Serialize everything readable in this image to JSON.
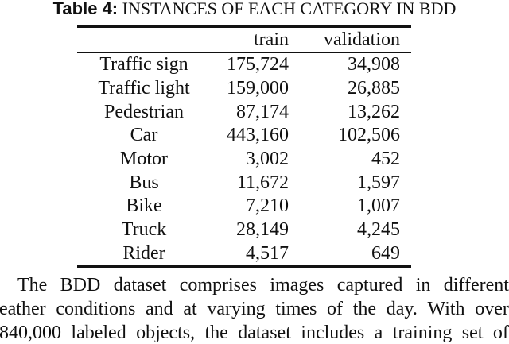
{
  "caption": {
    "label": "Table 4:",
    "text": "INSTANCES OF EACH CATEGORY IN BDD"
  },
  "table": {
    "headers": [
      "",
      "train",
      "validation"
    ],
    "rows": [
      [
        "Traffic sign",
        "175,724",
        "34,908"
      ],
      [
        "Traffic light",
        "159,000",
        "26,885"
      ],
      [
        "Pedestrian",
        "87,174",
        "13,262"
      ],
      [
        "Car",
        "443,160",
        "102,506"
      ],
      [
        "Motor",
        "3,002",
        "452"
      ],
      [
        "Bus",
        "11,672",
        "1,597"
      ],
      [
        "Bike",
        "7,210",
        "1,007"
      ],
      [
        "Truck",
        "28,149",
        "4,245"
      ],
      [
        "Rider",
        "4,517",
        "649"
      ]
    ]
  },
  "paragraph": {
    "lines": [
      "The BDD dataset comprises images captured in different",
      "eather conditions and at varying times of the day. With over",
      "840,000 labeled objects, the dataset includes a training set of"
    ]
  }
}
